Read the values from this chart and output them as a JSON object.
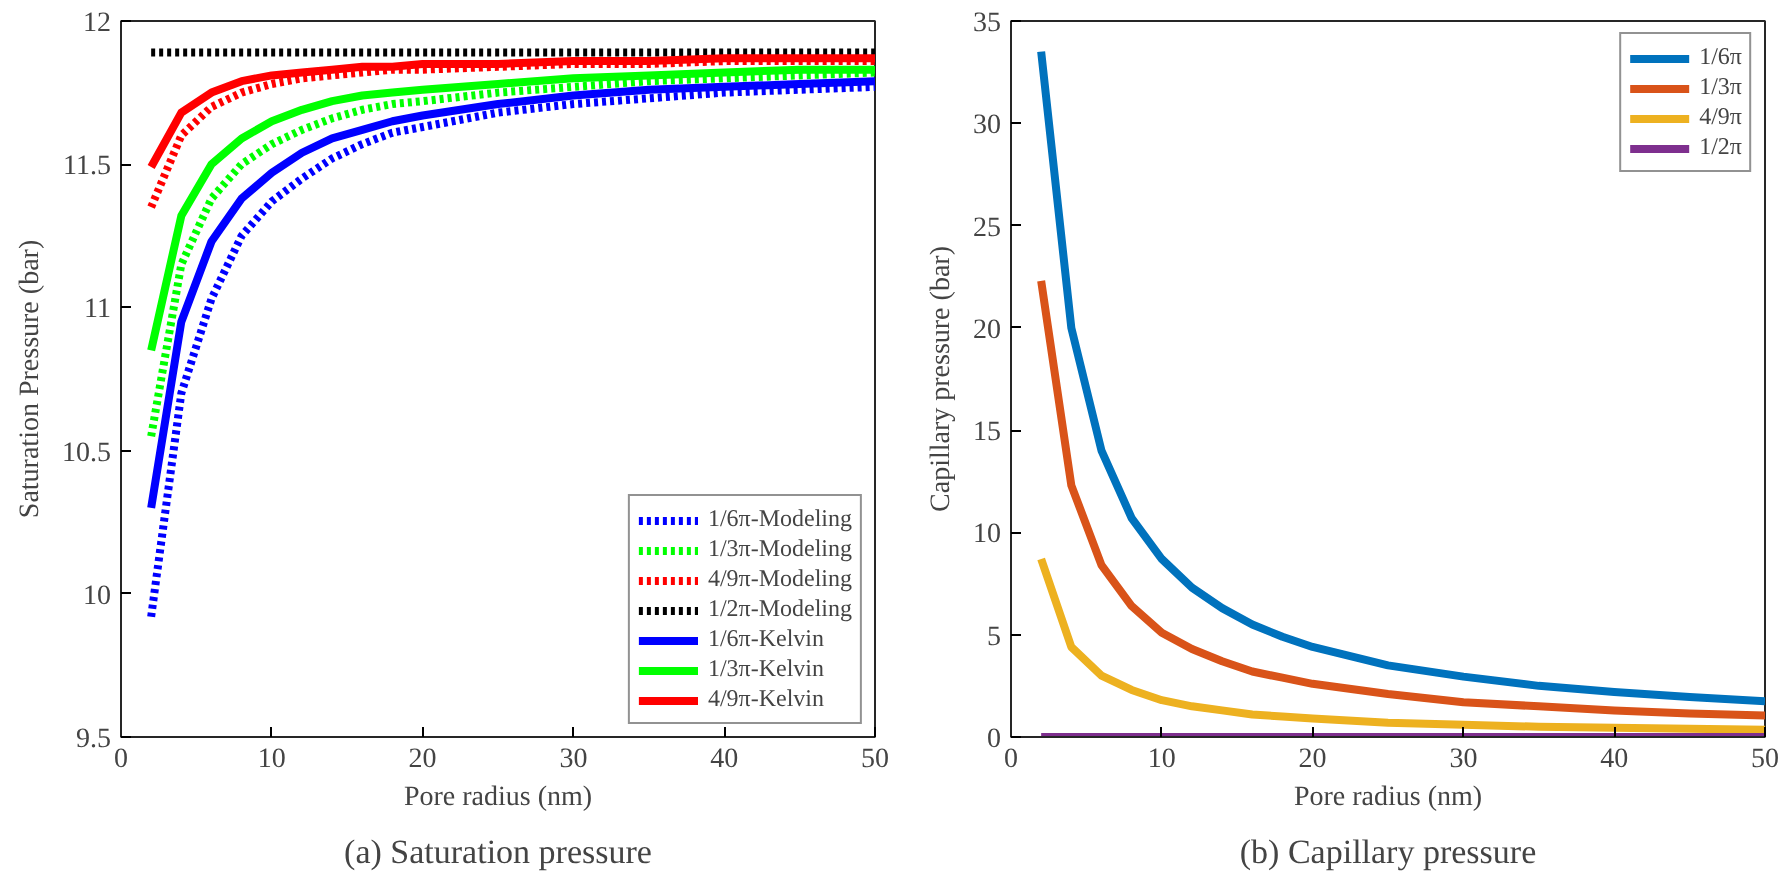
{
  "chart_data": [
    {
      "type": "line",
      "xlabel": "Pore radius (nm)",
      "ylabel": "Saturation Pressure (bar)",
      "annotations": [
        "(a) Saturation pressure"
      ],
      "x": [
        2,
        4,
        6,
        8,
        10,
        12,
        14,
        16,
        18,
        20,
        25,
        30,
        35,
        40,
        45,
        50
      ],
      "xlim": [
        0,
        50
      ],
      "xticks": [
        0,
        10,
        20,
        30,
        40,
        50
      ],
      "ylim": [
        9.5,
        12
      ],
      "yticks": [
        9.5,
        10,
        10.5,
        11,
        11.5,
        12
      ],
      "legend": "bottom right",
      "series": [
        {
          "name": "1/6π-Modeling",
          "color": "#0000ff",
          "line_style": "dotted",
          "values": [
            9.92,
            10.7,
            11.03,
            11.25,
            11.37,
            11.45,
            11.52,
            11.57,
            11.61,
            11.63,
            11.68,
            11.71,
            11.73,
            11.75,
            11.76,
            11.77
          ]
        },
        {
          "name": "1/3π-Modeling",
          "color": "#00ff00",
          "line_style": "dotted",
          "values": [
            10.55,
            11.15,
            11.38,
            11.5,
            11.57,
            11.62,
            11.66,
            11.69,
            11.71,
            11.72,
            11.75,
            11.77,
            11.79,
            11.8,
            11.81,
            11.82
          ]
        },
        {
          "name": "4/9π-Modeling",
          "color": "#ff0000",
          "line_style": "dotted",
          "values": [
            11.35,
            11.6,
            11.7,
            11.75,
            11.78,
            11.8,
            11.81,
            11.82,
            11.83,
            11.83,
            11.84,
            11.85,
            11.85,
            11.86,
            11.86,
            11.86
          ]
        },
        {
          "name": "1/2π-Modeling",
          "color": "#000000",
          "line_style": "dotted",
          "values": [
            11.89,
            11.89,
            11.89,
            11.89,
            11.89,
            11.89,
            11.89,
            11.89,
            11.89,
            11.89,
            11.89,
            11.89,
            11.89,
            11.89,
            11.89,
            11.89
          ]
        },
        {
          "name": "1/6π-Kelvin",
          "color": "#0000ff",
          "line_style": "solid",
          "values": [
            10.3,
            10.95,
            11.23,
            11.38,
            11.47,
            11.54,
            11.59,
            11.62,
            11.65,
            11.67,
            11.71,
            11.74,
            11.76,
            11.77,
            11.78,
            11.79
          ]
        },
        {
          "name": "1/3π-Kelvin",
          "color": "#00ff00",
          "line_style": "solid",
          "values": [
            10.85,
            11.32,
            11.5,
            11.59,
            11.65,
            11.69,
            11.72,
            11.74,
            11.75,
            11.76,
            11.78,
            11.8,
            11.81,
            11.82,
            11.83,
            11.83
          ]
        },
        {
          "name": "4/9π-Kelvin",
          "color": "#ff0000",
          "line_style": "solid",
          "values": [
            11.49,
            11.68,
            11.75,
            11.79,
            11.81,
            11.82,
            11.83,
            11.84,
            11.84,
            11.85,
            11.85,
            11.86,
            11.86,
            11.87,
            11.87,
            11.87
          ]
        }
      ]
    },
    {
      "type": "line",
      "xlabel": "Pore radius (nm)",
      "ylabel": "Capillary pressure (bar)",
      "annotations": [
        "(b) Capillary pressure"
      ],
      "x": [
        2,
        4,
        6,
        8,
        10,
        12,
        14,
        16,
        18,
        20,
        25,
        30,
        35,
        40,
        45,
        50
      ],
      "xlim": [
        0,
        50
      ],
      "xticks": [
        0,
        10,
        20,
        30,
        40,
        50
      ],
      "ylim": [
        0,
        35
      ],
      "yticks": [
        0,
        5,
        10,
        15,
        20,
        25,
        30,
        35
      ],
      "legend": "top right",
      "series": [
        {
          "name": "1/6π",
          "color": "#0072bd",
          "values": [
            33.5,
            20,
            14,
            10.7,
            8.7,
            7.3,
            6.3,
            5.5,
            4.9,
            4.4,
            3.5,
            2.95,
            2.5,
            2.2,
            1.95,
            1.75
          ]
        },
        {
          "name": "1/3π",
          "color": "#d95319",
          "values": [
            22.3,
            12.3,
            8.4,
            6.4,
            5.1,
            4.3,
            3.7,
            3.2,
            2.9,
            2.6,
            2.1,
            1.7,
            1.5,
            1.3,
            1.15,
            1.05
          ]
        },
        {
          "name": "4/9π",
          "color": "#edb120",
          "values": [
            8.7,
            4.4,
            3.0,
            2.3,
            1.8,
            1.5,
            1.3,
            1.1,
            1.0,
            0.9,
            0.7,
            0.6,
            0.5,
            0.45,
            0.4,
            0.35
          ]
        },
        {
          "name": "1/2π",
          "color": "#7e2f8e",
          "values": [
            0,
            0,
            0,
            0,
            0,
            0,
            0,
            0,
            0,
            0,
            0,
            0,
            0,
            0,
            0,
            0
          ]
        }
      ]
    }
  ]
}
